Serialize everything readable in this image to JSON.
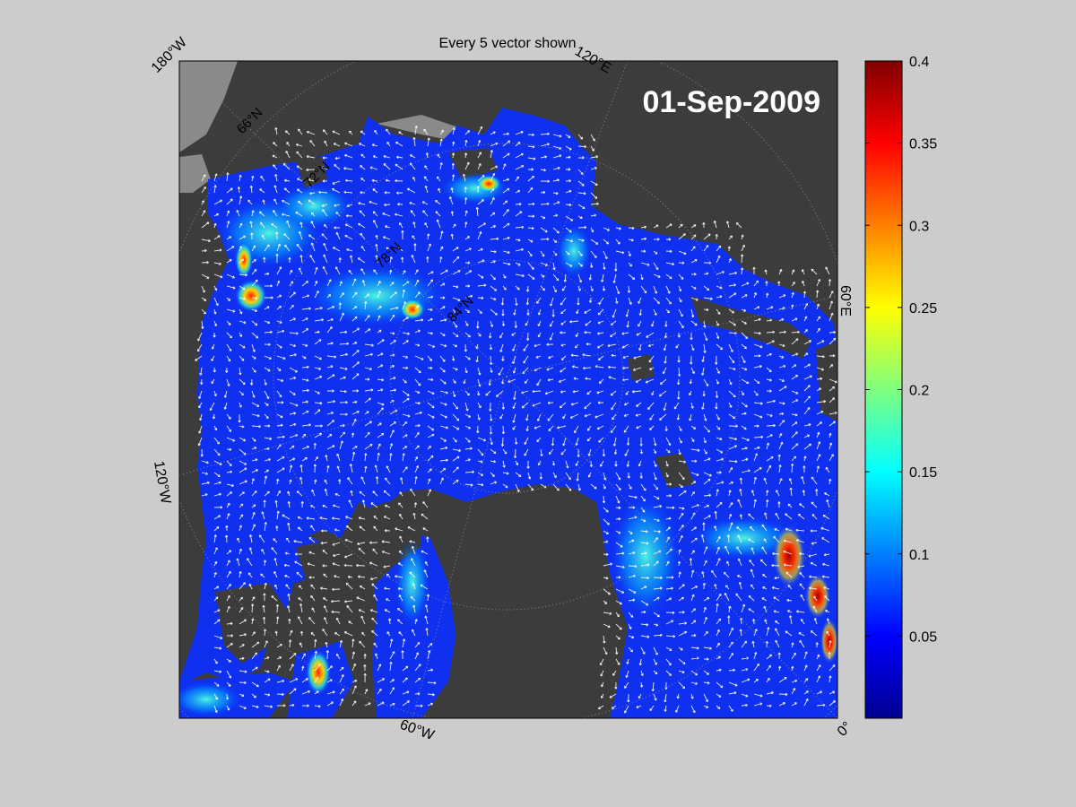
{
  "figure": {
    "title": "Every 5 vector shown",
    "date_label": "01-Sep-2009",
    "background_color": "#cccccc",
    "land_color": "#3c3c3c",
    "ice_shelf_color": "#8a8a8a",
    "vector_color": "#ffffff"
  },
  "map": {
    "projection": "polar stereographic",
    "longitude_labels": [
      {
        "id": "lon-180w",
        "text": "180°W"
      },
      {
        "id": "lon-120e",
        "text": "120°E"
      },
      {
        "id": "lon-60e",
        "text": "60°E"
      },
      {
        "id": "lon-0",
        "text": "0°"
      },
      {
        "id": "lon-60w",
        "text": "60°W"
      },
      {
        "id": "lon-120w",
        "text": "120°W"
      }
    ],
    "latitude_labels": [
      {
        "id": "lat-66n",
        "text": "66°N"
      },
      {
        "id": "lat-72n",
        "text": "72°N"
      },
      {
        "id": "lat-78n",
        "text": "78°N"
      },
      {
        "id": "lat-84n",
        "text": "84°N"
      }
    ]
  },
  "colorbar": {
    "colormap": "jet",
    "range": [
      0,
      0.4
    ],
    "tick_labels": [
      "0.4",
      "0.35",
      "0.3",
      "0.25",
      "0.2",
      "0.15",
      "0.1",
      "0.05"
    ]
  }
}
